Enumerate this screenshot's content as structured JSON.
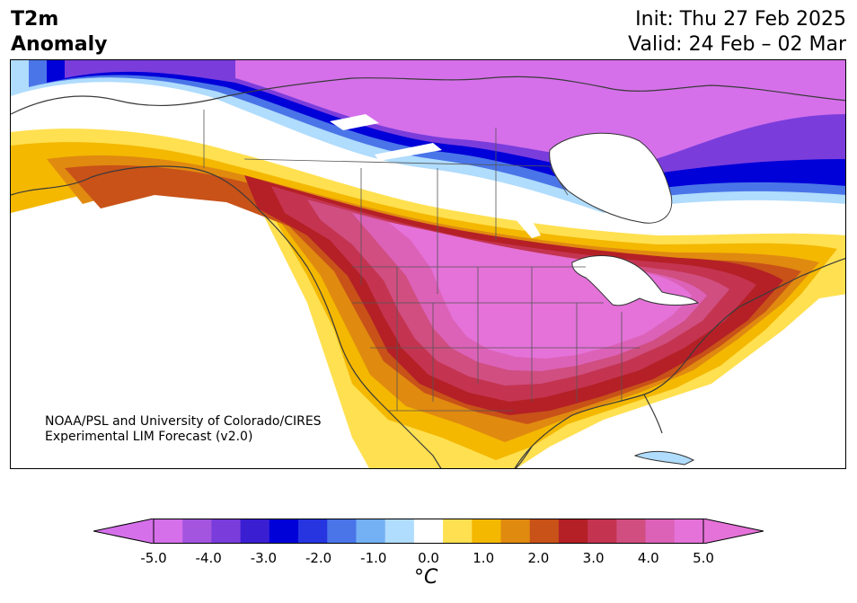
{
  "title": {
    "left_line1": "T2m",
    "left_line2": "Anomaly",
    "init": "Init: Thu 27 Feb 2025",
    "valid": "Valid: 24 Feb – 02 Mar"
  },
  "credit": {
    "line1": "NOAA/PSL and University of Colorado/CIRES",
    "line2": "Experimental LIM Forecast (v2.0)"
  },
  "colorbar": {
    "unit": "°C",
    "tick_labels": [
      "-5.0",
      "-4.0",
      "-3.0",
      "-2.0",
      "-1.0",
      "0.0",
      "1.0",
      "2.0",
      "3.0",
      "4.0",
      "5.0"
    ],
    "levels": [
      -5.0,
      -4.5,
      -4.0,
      -3.5,
      -3.0,
      -2.5,
      -2.0,
      -1.5,
      -1.0,
      -0.5,
      0.5,
      1.0,
      1.5,
      2.0,
      2.5,
      3.0,
      3.5,
      4.0,
      4.5,
      5.0
    ],
    "colors": [
      "#d570ea",
      "#a355e0",
      "#7a3ddc",
      "#3a1fd2",
      "#0000d8",
      "#2635e0",
      "#4a75e8",
      "#74b0f4",
      "#b0dcfd",
      "#ffffff",
      "#ffe050",
      "#f4b800",
      "#e08a10",
      "#c85218",
      "#b42026",
      "#c43450",
      "#d04e80",
      "#dc62b8",
      "#e472d8"
    ],
    "under_color": "#d570ea",
    "over_color": "#e472d8"
  }
}
